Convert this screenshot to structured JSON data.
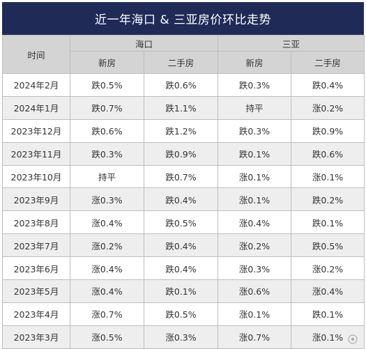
{
  "title": "近一年海口 & 三亚房价环比走势",
  "header": {
    "time": "时间",
    "haikou": "海口",
    "sanya": "三亚",
    "new_house": "新房",
    "second_hand": "二手房"
  },
  "rows": [
    {
      "time": "2024年2月",
      "hk_new": "跌0.5%",
      "hk_second": "跌0.6%",
      "sy_new": "跌0.3%",
      "sy_second": "跌0.4%"
    },
    {
      "time": "2024年1月",
      "hk_new": "跌0.7%",
      "hk_second": "跌1.1%",
      "sy_new": "持平",
      "sy_second": "涨0.2%"
    },
    {
      "time": "2023年12月",
      "hk_new": "跌0.6%",
      "hk_second": "跌1.2%",
      "sy_new": "跌0.3%",
      "sy_second": "跌0.9%"
    },
    {
      "time": "2023年11月",
      "hk_new": "跌0.3%",
      "hk_second": "跌0.9%",
      "sy_new": "跌0.1%",
      "sy_second": "跌0.6%"
    },
    {
      "time": "2023年10月",
      "hk_new": "持平",
      "hk_second": "跌0.7%",
      "sy_new": "涨0.1%",
      "sy_second": "涨0.1%"
    },
    {
      "time": "2023年9月",
      "hk_new": "涨0.3%",
      "hk_second": "跌0.4%",
      "sy_new": "涨0.1%",
      "sy_second": "跌0.2%"
    },
    {
      "time": "2023年8月",
      "hk_new": "涨0.4%",
      "hk_second": "跌0.5%",
      "sy_new": "涨0.4%",
      "sy_second": "跌0.1%"
    },
    {
      "time": "2023年7月",
      "hk_new": "涨0.2%",
      "hk_second": "跌0.4%",
      "sy_new": "涨0.2%",
      "sy_second": "跌0.5%"
    },
    {
      "time": "2023年6月",
      "hk_new": "涨0.4%",
      "hk_second": "跌0.4%",
      "sy_new": "涨0.3%",
      "sy_second": "涨0.2%"
    },
    {
      "time": "2023年5月",
      "hk_new": "涨0.4%",
      "hk_second": "跌0.1%",
      "sy_new": "涨0.6%",
      "sy_second": "涨0.4%"
    },
    {
      "time": "2023年4月",
      "hk_new": "涨0.7%",
      "hk_second": "跌0.5%",
      "sy_new": "涨0.1%",
      "sy_second": "跌0.1%"
    },
    {
      "time": "2023年3月",
      "hk_new": "涨0.5%",
      "hk_second": "涨0.3%",
      "sy_new": "涨0.7%",
      "sy_second": "涨0.1%"
    }
  ]
}
